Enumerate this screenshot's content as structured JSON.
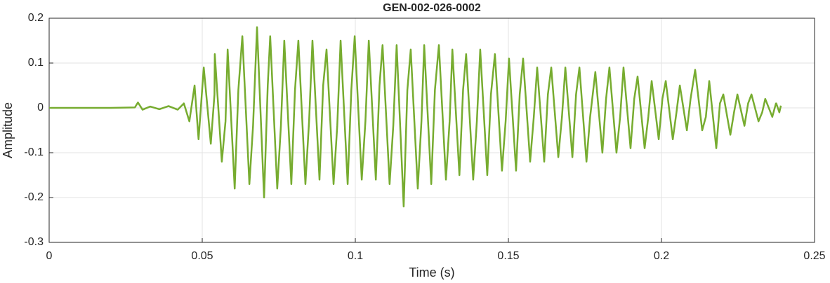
{
  "chart_data": {
    "type": "line",
    "title": "GEN-002-026-0002",
    "x_label": "Time (s)",
    "y_label": "Amplitude",
    "color": "#77ac30",
    "grid": true,
    "xlim": [
      0,
      0.25
    ],
    "xticks": [
      0,
      0.05,
      0.1,
      0.15,
      0.2,
      0.25
    ],
    "ylim": [
      -0.3,
      0.2
    ],
    "yticks": [
      -0.3,
      -0.2,
      -0.1,
      0,
      0.1,
      0.2
    ],
    "x": [
      0,
      0.01,
      0.02,
      0.028,
      0.029,
      0.0305,
      0.033,
      0.036,
      0.039,
      0.042,
      0.044,
      0.0458,
      0.0475,
      0.0488,
      0.0505,
      0.0528,
      0.054,
      0.0541,
      0.0564,
      0.0576,
      0.0583,
      0.0606,
      0.0618,
      0.0631,
      0.0654,
      0.0666,
      0.0679,
      0.0702,
      0.0714,
      0.0722,
      0.0745,
      0.0757,
      0.0768,
      0.0791,
      0.0803,
      0.0814,
      0.0837,
      0.0849,
      0.086,
      0.0883,
      0.0895,
      0.0906,
      0.0929,
      0.0941,
      0.0952,
      0.0975,
      0.0987,
      0.0998,
      0.1021,
      0.1033,
      0.1044,
      0.1067,
      0.1079,
      0.1089,
      0.1112,
      0.1124,
      0.1135,
      0.1158,
      0.117,
      0.1181,
      0.1204,
      0.1216,
      0.1225,
      0.1248,
      0.126,
      0.1273,
      0.1296,
      0.1308,
      0.1317,
      0.134,
      0.1352,
      0.1362,
      0.1385,
      0.1397,
      0.1408,
      0.1431,
      0.1443,
      0.1456,
      0.1479,
      0.1491,
      0.1502,
      0.1525,
      0.1537,
      0.1548,
      0.1571,
      0.1583,
      0.1594,
      0.1617,
      0.1629,
      0.164,
      0.1663,
      0.1675,
      0.1686,
      0.1709,
      0.1721,
      0.1732,
      0.1755,
      0.1767,
      0.1784,
      0.1807,
      0.1819,
      0.183,
      0.1853,
      0.1865,
      0.1876,
      0.1899,
      0.1911,
      0.1922,
      0.1945,
      0.1957,
      0.1968,
      0.1991,
      0.2003,
      0.2014,
      0.2037,
      0.2049,
      0.206,
      0.2083,
      0.2095,
      0.211,
      0.2133,
      0.2145,
      0.2156,
      0.2179,
      0.2191,
      0.2202,
      0.2225,
      0.2237,
      0.2248,
      0.2271,
      0.2283,
      0.2294,
      0.2317,
      0.2329,
      0.2339,
      0.2362,
      0.2374,
      0.2375,
      0.2385,
      0.239
    ],
    "values": [
      0,
      0,
      0,
      0.001,
      0.012,
      -0.004,
      0.003,
      -0.003,
      0.004,
      -0.004,
      0.01,
      -0.03,
      0.05,
      -0.07,
      0.09,
      -0.08,
      0.03,
      0.12,
      -0.12,
      -0.03,
      0.13,
      -0.18,
      0.04,
      0.16,
      -0.17,
      -0.04,
      0.18,
      -0.2,
      0.05,
      0.16,
      -0.18,
      -0.04,
      0.15,
      -0.17,
      0.04,
      0.15,
      -0.17,
      -0.03,
      0.15,
      -0.16,
      0.05,
      0.13,
      -0.17,
      -0.04,
      0.15,
      -0.17,
      0.04,
      0.16,
      -0.16,
      -0.03,
      0.15,
      -0.16,
      0.05,
      0.14,
      -0.17,
      -0.04,
      0.14,
      -0.22,
      0.04,
      0.13,
      -0.18,
      -0.03,
      0.14,
      -0.17,
      0.04,
      0.14,
      -0.16,
      -0.03,
      0.13,
      -0.15,
      0.04,
      0.12,
      -0.16,
      -0.03,
      0.13,
      -0.15,
      0.03,
      0.12,
      -0.14,
      -0.03,
      0.11,
      -0.14,
      0.03,
      0.11,
      -0.12,
      -0.02,
      0.09,
      -0.12,
      0.03,
      0.09,
      -0.11,
      -0.02,
      0.09,
      -0.11,
      0.03,
      0.09,
      -0.12,
      -0.02,
      0.08,
      -0.1,
      0.02,
      0.09,
      -0.1,
      -0.02,
      0.09,
      -0.09,
      0.02,
      0.07,
      -0.09,
      -0.02,
      0.06,
      -0.07,
      0.02,
      0.06,
      -0.07,
      -0.01,
      0.05,
      -0.05,
      0.02,
      0.085,
      -0.05,
      -0.02,
      0.06,
      -0.09,
      0.01,
      0.03,
      -0.06,
      -0.01,
      0.03,
      -0.04,
      0.01,
      0.03,
      -0.03,
      -0.01,
      0.02,
      -0.02,
      0.01,
      0.01,
      -0.01,
      0.005
    ]
  }
}
